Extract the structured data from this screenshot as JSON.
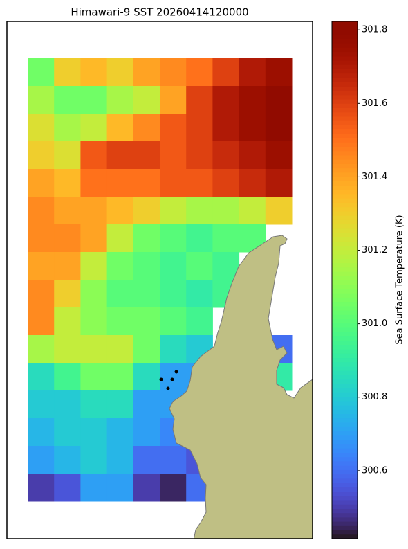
{
  "chart_data": {
    "type": "heatmap",
    "title": "Himawari-9 SST 20260414120000",
    "colorbar_label": "Sea Surface Temperature (K)",
    "colormap": "turbo",
    "clim": [
      300.415,
      301.823
    ],
    "cticks": [
      300.6,
      300.8,
      {
        "value": 301,
        "label": "301.0"
      },
      301.2,
      301.4,
      301.6,
      301.8
    ],
    "values": [
      [
        301.05,
        301.3,
        301.35,
        301.3,
        301.4,
        301.45,
        301.5,
        301.6,
        301.7,
        301.75
      ],
      [
        301.15,
        301.05,
        301.05,
        301.15,
        301.2,
        301.4,
        301.6,
        301.7,
        301.75,
        301.8
      ],
      [
        301.25,
        301.15,
        301.2,
        301.35,
        301.45,
        301.55,
        301.6,
        301.7,
        301.75,
        301.8
      ],
      [
        301.3,
        301.25,
        301.55,
        301.6,
        301.6,
        301.55,
        301.6,
        301.65,
        301.7,
        301.75
      ],
      [
        301.4,
        301.35,
        301.5,
        301.5,
        301.5,
        301.55,
        301.55,
        301.6,
        301.65,
        301.7
      ],
      [
        301.45,
        301.4,
        301.4,
        301.35,
        301.3,
        301.2,
        301.15,
        301.15,
        301.2,
        301.3
      ],
      [
        301.45,
        301.45,
        301.4,
        301.2,
        301.05,
        301.0,
        300.95,
        301.0,
        301.0,
        null
      ],
      [
        301.4,
        301.4,
        301.2,
        301.05,
        301.0,
        300.95,
        301.0,
        300.95,
        null,
        null
      ],
      [
        301.45,
        301.3,
        301.1,
        301.0,
        301.0,
        300.95,
        300.9,
        300.95,
        null,
        null
      ],
      [
        301.45,
        301.2,
        301.1,
        301.05,
        301.05,
        301.0,
        300.95,
        null,
        null,
        null
      ],
      [
        301.15,
        301.2,
        301.2,
        301.2,
        301.05,
        300.85,
        300.8,
        null,
        null,
        300.6
      ],
      [
        300.85,
        300.95,
        301.05,
        301.05,
        300.85,
        300.7,
        300.7,
        null,
        null,
        300.9
      ],
      [
        300.8,
        300.8,
        300.85,
        300.85,
        300.7,
        300.7,
        null,
        null,
        null,
        null
      ],
      [
        300.75,
        300.8,
        300.8,
        300.75,
        300.7,
        300.65,
        null,
        null,
        null,
        null
      ],
      [
        300.7,
        300.75,
        300.8,
        300.75,
        300.6,
        300.6,
        300.55,
        null,
        null,
        null
      ],
      [
        300.5,
        300.55,
        300.7,
        300.7,
        300.5,
        300.45,
        300.6,
        null,
        null,
        null
      ]
    ]
  }
}
